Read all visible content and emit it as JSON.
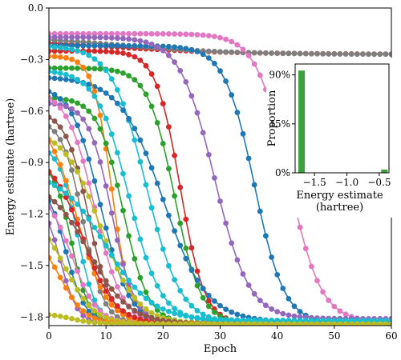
{
  "chart_data": [
    {
      "type": "line",
      "xlabel": "Epoch",
      "ylabel": "Energy estimate (hartree)",
      "xlim": [
        0,
        60
      ],
      "ylim": [
        -1.85,
        0
      ],
      "xticks": [
        0,
        10,
        20,
        30,
        40,
        50,
        60
      ],
      "xtick_labels": [
        "0",
        "10",
        "20",
        "30",
        "40",
        "50",
        "60"
      ],
      "yticks": [
        0,
        -0.3,
        -0.6,
        -0.9,
        -1.2,
        -1.5,
        -1.8
      ],
      "ytick_labels": [
        "0.0",
        "−0.3",
        "−0.6",
        "−0.9",
        "−1.2",
        "−1.5",
        "−1.8"
      ],
      "grid": false,
      "marker": "circle",
      "series": [
        {
          "color": "#d62728",
          "start": -0.17,
          "end": -0.27,
          "mid": 8,
          "width": 12,
          "epochs": 60
        },
        {
          "color": "#7f7f7f",
          "start": -0.16,
          "end": -0.27,
          "mid": 12,
          "width": 10,
          "epochs": 60
        },
        {
          "color": "#e377c2",
          "start": -0.15,
          "end": -1.83,
          "mid": 42,
          "width": 2.8,
          "epochs": 60
        },
        {
          "color": "#1f77b4",
          "start": -0.22,
          "end": -1.84,
          "mid": 36,
          "width": 2.6,
          "epochs": 60
        },
        {
          "color": "#9467bd",
          "start": -0.17,
          "end": -1.81,
          "mid": 29,
          "width": 3.0,
          "epochs": 60
        },
        {
          "color": "#d62728",
          "start": -0.25,
          "end": -1.84,
          "mid": 23,
          "width": 2.1,
          "epochs": 60
        },
        {
          "color": "#2ca02c",
          "start": -0.35,
          "end": -1.84,
          "mid": 22,
          "width": 2.3,
          "epochs": 60
        },
        {
          "color": "#17becf",
          "start": -0.22,
          "end": -1.84,
          "mid": 17,
          "width": 3.0,
          "epochs": 60
        },
        {
          "color": "#1f77b4",
          "start": -0.4,
          "end": -1.83,
          "mid": 20,
          "width": 3.8,
          "epochs": 60
        },
        {
          "color": "#ff7f0e",
          "start": -0.28,
          "end": -1.83,
          "mid": 11,
          "width": 1.6,
          "epochs": 60
        },
        {
          "color": "#17becf",
          "start": -0.36,
          "end": -1.83,
          "mid": 14,
          "width": 2.8,
          "epochs": 60
        },
        {
          "color": "#2ca02c",
          "start": -0.52,
          "end": -1.84,
          "mid": 13,
          "width": 2.2,
          "epochs": 60
        },
        {
          "color": "#1f77b4",
          "start": -0.45,
          "end": -1.84,
          "mid": 9,
          "width": 2.5,
          "epochs": 60
        },
        {
          "color": "#9467bd",
          "start": -0.55,
          "end": -1.84,
          "mid": 11,
          "width": 2.0,
          "epochs": 60
        },
        {
          "color": "#e377c2",
          "start": -0.48,
          "end": -1.84,
          "mid": 8,
          "width": 2.4,
          "epochs": 60
        },
        {
          "color": "#8c564b",
          "start": -0.6,
          "end": -1.84,
          "mid": 7,
          "width": 2.0,
          "epochs": 60
        },
        {
          "color": "#7f7f7f",
          "start": -0.65,
          "end": -1.84,
          "mid": 6,
          "width": 1.8,
          "epochs": 60
        },
        {
          "color": "#bcbd22",
          "start": -0.7,
          "end": -1.84,
          "mid": 9,
          "width": 3.2,
          "epochs": 60
        },
        {
          "color": "#17becf",
          "start": -0.8,
          "end": -1.84,
          "mid": 5,
          "width": 1.6,
          "epochs": 60
        },
        {
          "color": "#ff7f0e",
          "start": -0.62,
          "end": -1.84,
          "mid": 5,
          "width": 2.6,
          "epochs": 60
        },
        {
          "color": "#2ca02c",
          "start": -0.9,
          "end": -1.84,
          "mid": 4,
          "width": 1.5,
          "epochs": 60
        },
        {
          "color": "#d62728",
          "start": -0.85,
          "end": -1.84,
          "mid": 6,
          "width": 2.8,
          "epochs": 60
        },
        {
          "color": "#1f77b4",
          "start": -1.0,
          "end": -1.84,
          "mid": 3,
          "width": 1.7,
          "epochs": 60
        },
        {
          "color": "#e377c2",
          "start": -1.05,
          "end": -1.84,
          "mid": 4,
          "width": 2.2,
          "epochs": 60
        },
        {
          "color": "#9467bd",
          "start": -1.1,
          "end": -1.84,
          "mid": 2,
          "width": 1.5,
          "epochs": 60
        },
        {
          "color": "#8c564b",
          "start": -1.0,
          "end": -1.84,
          "mid": 7,
          "width": 3.5,
          "epochs": 60
        },
        {
          "color": "#bcbd22",
          "start": -1.2,
          "end": -1.84,
          "mid": 3,
          "width": 2.5,
          "epochs": 60
        },
        {
          "color": "#ff7f0e",
          "start": -1.3,
          "end": -1.84,
          "mid": 2,
          "width": 2.2,
          "epochs": 60
        },
        {
          "color": "#17becf",
          "start": -0.95,
          "end": -1.82,
          "mid": 10,
          "width": 4.0,
          "epochs": 60
        },
        {
          "color": "#bcbd22",
          "start": -1.78,
          "end": -1.84,
          "mid": 4,
          "width": 2.0,
          "epochs": 60
        }
      ]
    },
    {
      "type": "bar",
      "xlabel": "Energy estimate",
      "xlabel2": "(hartree)",
      "ylabel": "Proportion",
      "xlim": [
        -1.8,
        -0.35
      ],
      "ylim": [
        0,
        1
      ],
      "xticks": [
        -1.5,
        -1.0,
        -0.5
      ],
      "xtick_labels": [
        "−1.5",
        "−1.0",
        "−0.5"
      ],
      "yticks": [
        0,
        0.45,
        0.9
      ],
      "ytick_labels": [
        "0%",
        "45%",
        "90%"
      ],
      "color": "#3ca03c",
      "bar_width": 0.1,
      "x": [
        -1.7,
        -0.42
      ],
      "values": [
        0.94,
        0.03
      ]
    }
  ]
}
